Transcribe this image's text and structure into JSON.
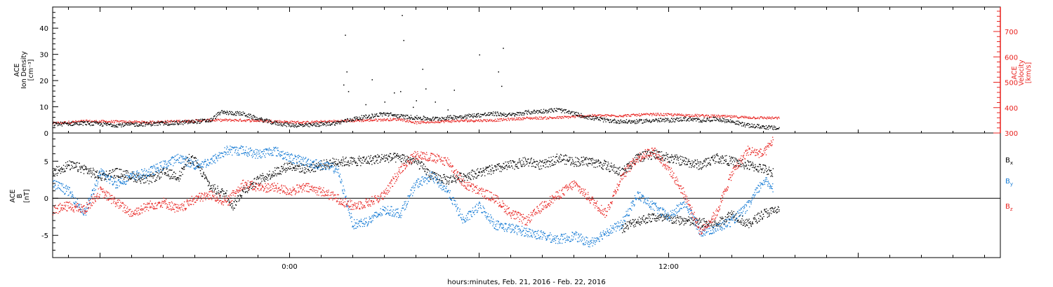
{
  "xlabel": "hours:minutes, Feb. 21, 2016 - Feb. 22, 2016",
  "colors": {
    "black": "#000000",
    "red": "#e8201d",
    "blue": "#1279d4",
    "axis_right": "#e8201d"
  },
  "chart_data": [
    {
      "type": "scatter",
      "panel": "top",
      "ylabel_left": [
        "ACE",
        "Ion Density",
        "[cm⁻³]"
      ],
      "ylabel_right": [
        "ACE",
        "Velocity",
        "[km/s]"
      ],
      "x_unit": "hours relative to Feb. 21, 2016 00:00",
      "xlim": [
        -7.5,
        22.5
      ],
      "x_tick_labels": [
        {
          "x": 0,
          "label": "0:00"
        },
        {
          "x": 12,
          "label": "12:00"
        }
      ],
      "ylim_left": [
        0,
        47
      ],
      "ylim_right": [
        300,
        780
      ],
      "left_ticks": [
        "0",
        "10",
        "20",
        "30",
        "40"
      ],
      "right_ticks": [
        "300",
        "400",
        "500",
        "600",
        "700"
      ],
      "series": [
        {
          "axis": "left",
          "color": "black",
          "points": [
            [
              -7.5,
              3.5
            ],
            [
              -6.5,
              3.9
            ],
            [
              -5.5,
              3.2
            ],
            [
              -4.5,
              3.6
            ],
            [
              -3.5,
              4.0
            ],
            [
              -2.5,
              5.0
            ],
            [
              -2.2,
              8.0
            ],
            [
              -1.5,
              7.5
            ],
            [
              -1.0,
              5.5
            ],
            [
              -0.5,
              4.0
            ],
            [
              0.0,
              3.2
            ],
            [
              0.5,
              3.0
            ],
            [
              1.0,
              3.5
            ],
            [
              1.5,
              4.0
            ],
            [
              2.0,
              5.5
            ],
            [
              2.5,
              6.5
            ],
            [
              3.0,
              7.5
            ],
            [
              3.5,
              6.5
            ],
            [
              4.0,
              6.0
            ],
            [
              4.5,
              5.5
            ],
            [
              5.0,
              6.0
            ],
            [
              5.5,
              6.5
            ],
            [
              6.0,
              7.0
            ],
            [
              6.5,
              7.5
            ],
            [
              7.0,
              7.0
            ],
            [
              7.5,
              8.0
            ],
            [
              8.0,
              8.5
            ],
            [
              8.5,
              9.0
            ],
            [
              9.0,
              7.5
            ],
            [
              9.5,
              6.0
            ],
            [
              10.0,
              5.0
            ],
            [
              10.5,
              4.5
            ],
            [
              11.0,
              4.5
            ],
            [
              11.5,
              5.0
            ],
            [
              12.0,
              5.0
            ],
            [
              12.5,
              5.5
            ],
            [
              13.0,
              5.0
            ],
            [
              13.5,
              5.5
            ],
            [
              14.0,
              4.5
            ],
            [
              14.5,
              3.0
            ],
            [
              15.0,
              2.5
            ],
            [
              15.5,
              1.8
            ]
          ],
          "spikes": [
            [
              1.7,
              18.5
            ],
            [
              1.75,
              37.5
            ],
            [
              1.8,
              23.5
            ],
            [
              1.85,
              16.0
            ],
            [
              2.4,
              11.0
            ],
            [
              2.6,
              20.5
            ],
            [
              3.0,
              12.0
            ],
            [
              3.3,
              15.5
            ],
            [
              3.5,
              16.0
            ],
            [
              3.6,
              35.5
            ],
            [
              3.55,
              45.0
            ],
            [
              4.2,
              24.5
            ],
            [
              4.3,
              17.0
            ],
            [
              4.6,
              12.0
            ],
            [
              5.2,
              16.5
            ],
            [
              5.9,
              7.0
            ],
            [
              5.0,
              9.0
            ],
            [
              6.0,
              30.0
            ],
            [
              6.6,
              23.5
            ],
            [
              6.7,
              18.0
            ],
            [
              6.75,
              32.5
            ],
            [
              3.9,
              10.0
            ],
            [
              4.0,
              12.5
            ]
          ]
        },
        {
          "axis": "right",
          "color": "red",
          "points": [
            [
              -7.5,
              340
            ],
            [
              -6.5,
              348
            ],
            [
              -5.5,
              346
            ],
            [
              -4.5,
              344
            ],
            [
              -3.5,
              348
            ],
            [
              -2.5,
              352
            ],
            [
              -1.5,
              352
            ],
            [
              -0.5,
              348
            ],
            [
              0.0,
              345
            ],
            [
              0.5,
              343
            ],
            [
              1.0,
              346
            ],
            [
              1.5,
              348
            ],
            [
              2.5,
              352
            ],
            [
              3.5,
              356
            ],
            [
              4.0,
              342
            ],
            [
              4.5,
              346
            ],
            [
              5.5,
              350
            ],
            [
              6.5,
              352
            ],
            [
              7.5,
              360
            ],
            [
              8.5,
              362
            ],
            [
              9.5,
              370
            ],
            [
              10.5,
              370
            ],
            [
              11.5,
              375
            ],
            [
              12.5,
              372
            ],
            [
              13.5,
              368
            ],
            [
              14.5,
              363
            ],
            [
              15.5,
              360
            ]
          ]
        }
      ]
    },
    {
      "type": "scatter",
      "panel": "bottom",
      "ylabel_left": [
        "ACE",
        "B",
        "[nT]"
      ],
      "x_unit": "hours relative to Feb. 21, 2016 00:00",
      "xlim": [
        -7.5,
        22.5
      ],
      "ylim": [
        -8,
        8.8
      ],
      "ticks": [
        "-5",
        "0",
        "5"
      ],
      "zero_line": true,
      "series": [
        {
          "name": "Bx",
          "label_main": "B",
          "label_sub": "x",
          "color": "black",
          "points": [
            [
              -7.5,
              3.5
            ],
            [
              -7.0,
              4.5
            ],
            [
              -6.5,
              4.0
            ],
            [
              -6.0,
              3.0
            ],
            [
              -5.5,
              3.5
            ],
            [
              -5.0,
              3.0
            ],
            [
              -4.5,
              2.5
            ],
            [
              -4.0,
              3.5
            ],
            [
              -3.5,
              3.0
            ],
            [
              -3.2,
              5.5
            ],
            [
              -3.0,
              5.0
            ],
            [
              -2.5,
              1.5
            ],
            [
              -2.0,
              0.5
            ],
            [
              -1.8,
              -1.0
            ],
            [
              -1.5,
              1.0
            ],
            [
              -1.0,
              2.5
            ],
            [
              -0.5,
              3.5
            ],
            [
              0.0,
              4.5
            ],
            [
              0.5,
              4.0
            ],
            [
              1.0,
              4.5
            ],
            [
              1.5,
              5.0
            ],
            [
              2.0,
              5.0
            ],
            [
              2.5,
              5.2
            ],
            [
              3.0,
              5.5
            ],
            [
              3.5,
              5.5
            ],
            [
              4.0,
              5.0
            ],
            [
              4.5,
              3.0
            ],
            [
              5.0,
              2.5
            ],
            [
              5.5,
              3.0
            ],
            [
              6.0,
              3.5
            ],
            [
              6.5,
              4.0
            ],
            [
              7.0,
              4.5
            ],
            [
              7.5,
              5.0
            ],
            [
              8.0,
              4.5
            ],
            [
              8.5,
              5.5
            ],
            [
              9.0,
              5.0
            ],
            [
              9.5,
              5.0
            ],
            [
              10.0,
              4.5
            ],
            [
              10.5,
              3.5
            ],
            [
              11.0,
              5.5
            ],
            [
              11.5,
              6.0
            ],
            [
              12.0,
              5.5
            ],
            [
              12.5,
              5.0
            ],
            [
              13.0,
              4.5
            ],
            [
              13.5,
              5.5
            ],
            [
              14.0,
              5.0
            ],
            [
              14.5,
              4.5
            ],
            [
              15.0,
              4.0
            ],
            [
              15.3,
              3.5
            ],
            [
              10.5,
              -4.0
            ],
            [
              11.0,
              -3.0
            ],
            [
              11.5,
              -2.5
            ],
            [
              12.5,
              -3.0
            ],
            [
              13.5,
              -3.5
            ],
            [
              14.0,
              -2.0
            ],
            [
              14.5,
              -3.5
            ],
            [
              15.0,
              -2.0
            ],
            [
              15.5,
              -1.5
            ]
          ]
        },
        {
          "name": "By",
          "label_main": "B",
          "label_sub": "y",
          "color": "blue",
          "points": [
            [
              -7.5,
              2.0
            ],
            [
              -7.0,
              1.0
            ],
            [
              -6.5,
              -2.0
            ],
            [
              -6.0,
              3.5
            ],
            [
              -5.5,
              2.0
            ],
            [
              -5.0,
              3.0
            ],
            [
              -4.5,
              3.5
            ],
            [
              -4.0,
              4.5
            ],
            [
              -3.5,
              5.5
            ],
            [
              -3.0,
              4.5
            ],
            [
              -2.5,
              5.0
            ],
            [
              -2.0,
              6.5
            ],
            [
              -1.5,
              6.5
            ],
            [
              -1.0,
              6.0
            ],
            [
              -0.5,
              6.5
            ],
            [
              0.0,
              5.5
            ],
            [
              0.5,
              5.0
            ],
            [
              1.0,
              4.5
            ],
            [
              1.5,
              4.0
            ],
            [
              2.0,
              -3.5
            ],
            [
              2.5,
              -3.0
            ],
            [
              3.0,
              -1.5
            ],
            [
              3.5,
              -2.0
            ],
            [
              4.0,
              2.0
            ],
            [
              4.5,
              3.0
            ],
            [
              5.0,
              1.0
            ],
            [
              5.5,
              -3.0
            ],
            [
              6.0,
              -1.0
            ],
            [
              6.5,
              -3.5
            ],
            [
              7.0,
              -4.0
            ],
            [
              7.5,
              -4.5
            ],
            [
              8.0,
              -5.0
            ],
            [
              8.5,
              -5.5
            ],
            [
              9.0,
              -5.0
            ],
            [
              9.5,
              -6.0
            ],
            [
              10.0,
              -4.5
            ],
            [
              10.5,
              -3.5
            ],
            [
              11.0,
              0.5
            ],
            [
              11.5,
              -1.0
            ],
            [
              12.0,
              -2.5
            ],
            [
              12.5,
              -0.5
            ],
            [
              13.0,
              -4.5
            ],
            [
              13.5,
              -4.0
            ],
            [
              14.0,
              -3.0
            ],
            [
              14.5,
              -1.0
            ],
            [
              15.0,
              2.5
            ],
            [
              15.3,
              1.5
            ]
          ]
        },
        {
          "name": "Bz",
          "label_main": "B",
          "label_sub": "z",
          "color": "red",
          "points": [
            [
              -7.5,
              -1.5
            ],
            [
              -7.0,
              -1.0
            ],
            [
              -6.5,
              -1.5
            ],
            [
              -6.0,
              1.0
            ],
            [
              -5.5,
              -0.5
            ],
            [
              -5.0,
              -2.0
            ],
            [
              -4.5,
              -1.0
            ],
            [
              -4.0,
              -0.5
            ],
            [
              -3.5,
              -1.5
            ],
            [
              -3.0,
              0.0
            ],
            [
              -2.5,
              0.5
            ],
            [
              -2.0,
              -0.5
            ],
            [
              -1.5,
              2.0
            ],
            [
              -1.0,
              1.5
            ],
            [
              -0.5,
              1.5
            ],
            [
              0.0,
              1.0
            ],
            [
              0.5,
              1.5
            ],
            [
              1.0,
              1.0
            ],
            [
              1.5,
              0.0
            ],
            [
              2.0,
              -1.0
            ],
            [
              2.5,
              -0.5
            ],
            [
              3.0,
              0.5
            ],
            [
              3.5,
              4.0
            ],
            [
              4.0,
              6.0
            ],
            [
              4.5,
              5.5
            ],
            [
              5.0,
              5.0
            ],
            [
              5.5,
              2.0
            ],
            [
              6.0,
              1.0
            ],
            [
              6.5,
              0.0
            ],
            [
              7.0,
              -2.0
            ],
            [
              7.5,
              -3.0
            ],
            [
              8.0,
              -1.0
            ],
            [
              8.5,
              0.5
            ],
            [
              9.0,
              2.0
            ],
            [
              9.5,
              0.0
            ],
            [
              10.0,
              -2.0
            ],
            [
              10.5,
              3.0
            ],
            [
              11.0,
              5.5
            ],
            [
              11.5,
              6.5
            ],
            [
              12.0,
              4.0
            ],
            [
              12.5,
              0.5
            ],
            [
              13.0,
              -4.5
            ],
            [
              13.5,
              -2.0
            ],
            [
              14.0,
              3.5
            ],
            [
              14.5,
              6.5
            ],
            [
              15.0,
              6.0
            ],
            [
              15.3,
              8.0
            ]
          ]
        }
      ]
    }
  ]
}
